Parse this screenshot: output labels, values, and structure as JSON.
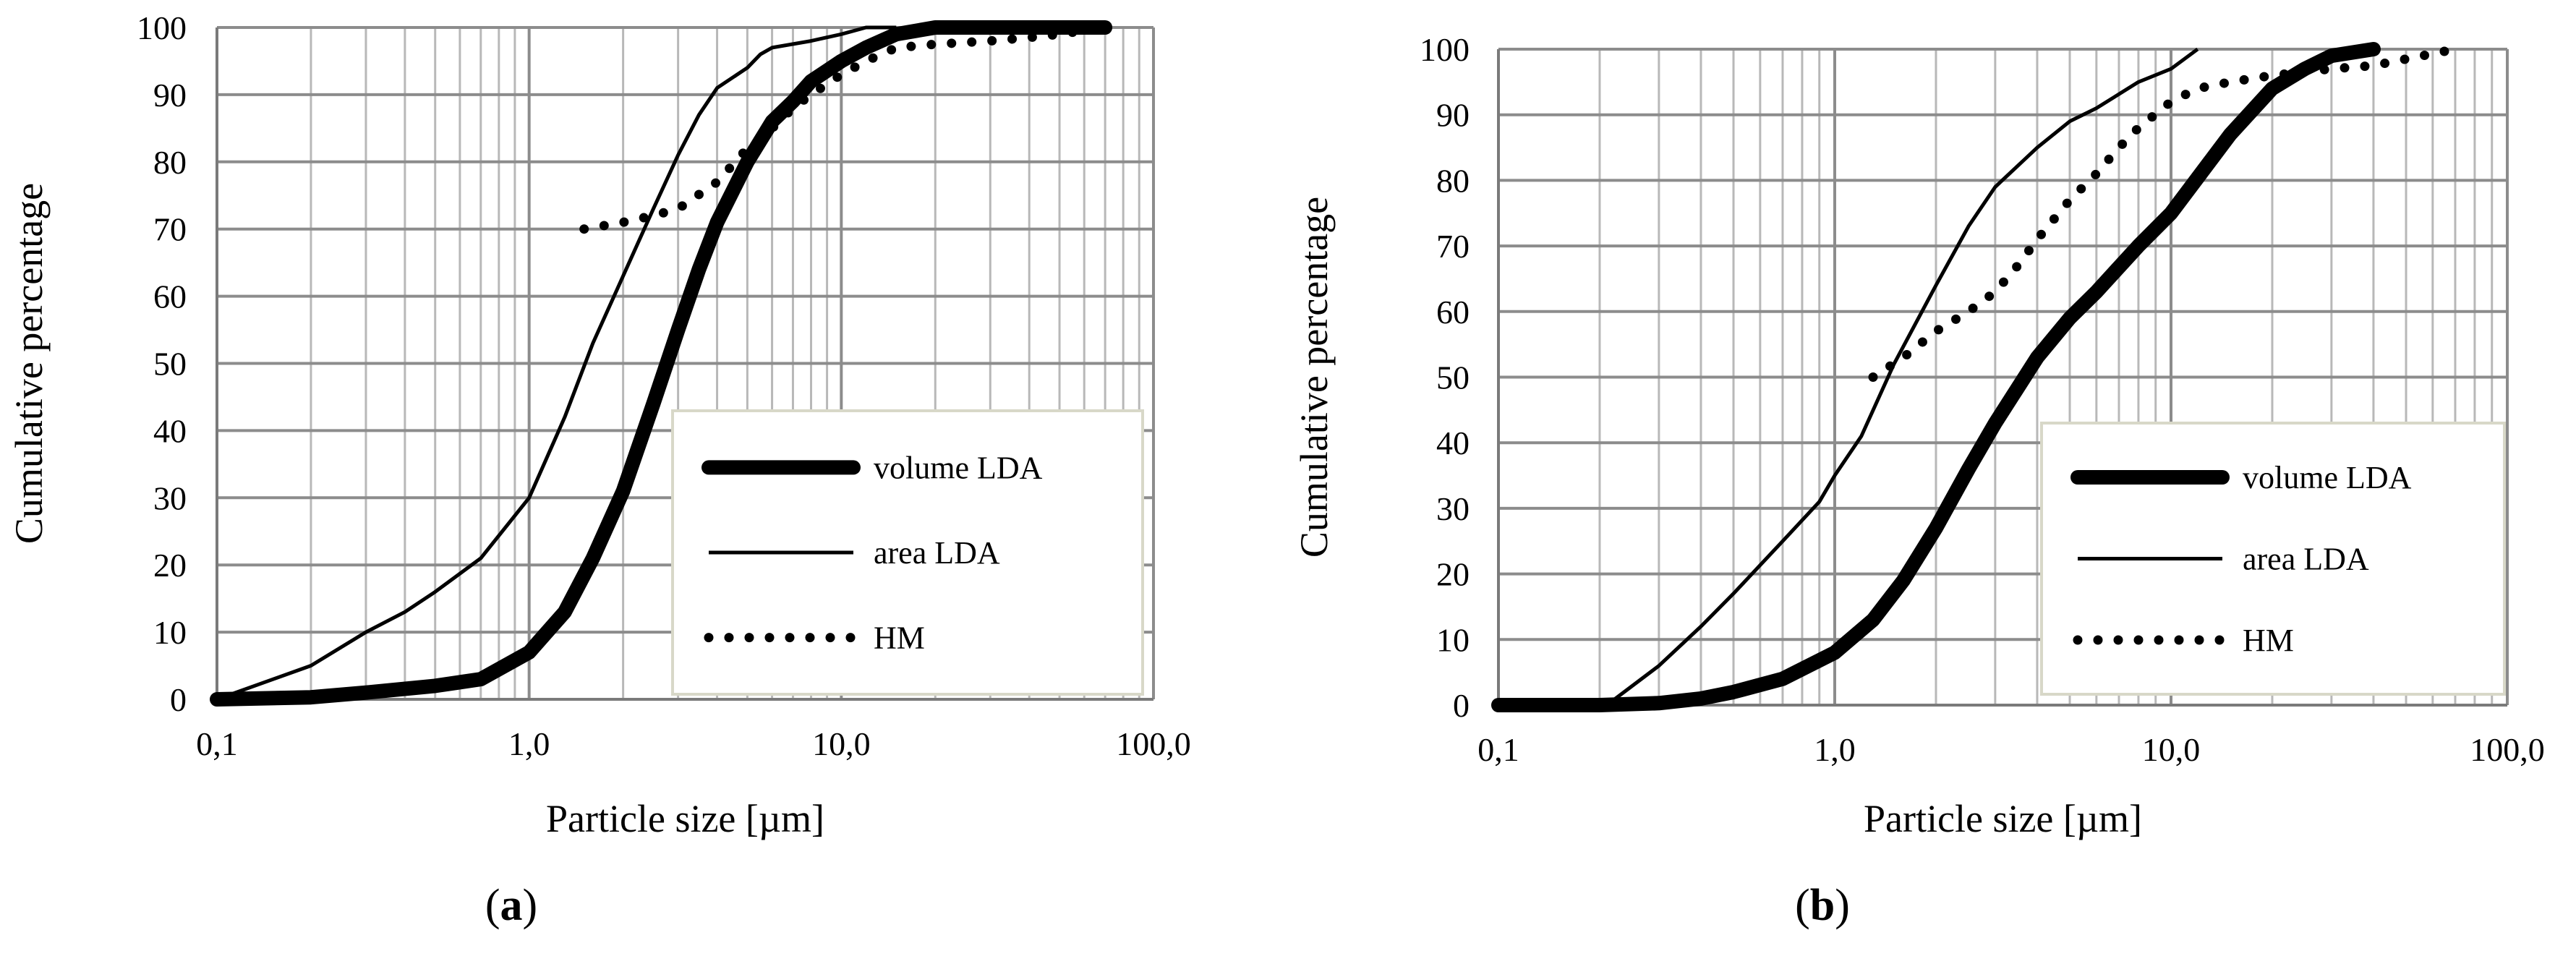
{
  "figure": {
    "caption_a": {
      "open": "(",
      "letter": "a",
      "close": ")"
    },
    "caption_b": {
      "open": "(",
      "letter": "b",
      "close": ")"
    }
  },
  "chart_data": [
    {
      "id": "a",
      "type": "line",
      "xscale": "log",
      "xlim": [
        0.1,
        100
      ],
      "ylim": [
        0,
        100
      ],
      "xlabel": "Particle size   [µm]",
      "ylabel": "Cumulative percentage",
      "x_tick_labels": [
        "0,1",
        "1,0",
        "10,0",
        "100,0"
      ],
      "y_ticks": [
        0,
        10,
        20,
        30,
        40,
        50,
        60,
        70,
        80,
        90,
        100
      ],
      "grid": true,
      "legend_position": "bottom-right",
      "series": [
        {
          "name": "volume LDA",
          "style": "thick",
          "x": [
            0.1,
            0.2,
            0.3,
            0.5,
            0.7,
            1.0,
            1.3,
            1.6,
            2.0,
            2.5,
            3.0,
            3.5,
            4.0,
            5.0,
            6.0,
            7.0,
            8.0,
            10,
            12,
            15,
            20,
            30,
            50,
            70
          ],
          "y": [
            0,
            0.3,
            1,
            2,
            3,
            7,
            13,
            21,
            31,
            44,
            55,
            64,
            71,
            80,
            86,
            89,
            92,
            95,
            97,
            99,
            100,
            100,
            100,
            100
          ]
        },
        {
          "name": "area LDA",
          "style": "thin",
          "x": [
            0.1,
            0.2,
            0.3,
            0.4,
            0.5,
            0.7,
            1.0,
            1.3,
            1.6,
            2.0,
            2.5,
            3.0,
            3.5,
            4.0,
            5.0,
            5.5,
            6.0,
            8.0,
            10,
            12,
            15
          ],
          "y": [
            0,
            5,
            10,
            13,
            16,
            21,
            30,
            42,
            53,
            63,
            73,
            81,
            87,
            91,
            94,
            96,
            97,
            98,
            99,
            100,
            100
          ]
        },
        {
          "name": "HM",
          "style": "dotted",
          "x": [
            1.5,
            2.0,
            2.5,
            3.0,
            4.0,
            5.0,
            6.0,
            7.0,
            8.0,
            10,
            12,
            15,
            20,
            30,
            40,
            50,
            70
          ],
          "y": [
            70,
            71,
            72,
            73,
            77,
            82,
            85,
            88,
            90,
            93,
            95,
            97,
            97.5,
            98,
            98.5,
            99,
            100
          ]
        }
      ]
    },
    {
      "id": "b",
      "type": "line",
      "xscale": "log",
      "xlim": [
        0.1,
        100
      ],
      "ylim": [
        0,
        100
      ],
      "xlabel": "Particle size   [µm]",
      "ylabel": "Cumulative percentage",
      "x_tick_labels": [
        "0,1",
        "1,0",
        "10,0",
        "100,0"
      ],
      "y_ticks": [
        0,
        10,
        20,
        30,
        40,
        50,
        60,
        70,
        80,
        90,
        100
      ],
      "grid": true,
      "legend_position": "bottom-right",
      "series": [
        {
          "name": "volume LDA",
          "style": "thick",
          "x": [
            0.1,
            0.2,
            0.3,
            0.4,
            0.5,
            0.7,
            1.0,
            1.3,
            1.6,
            2.0,
            2.5,
            3.0,
            4.0,
            5.0,
            6.0,
            8.0,
            10,
            15,
            20,
            25,
            30,
            40
          ],
          "y": [
            0,
            0,
            0.3,
            1,
            2,
            4,
            8,
            13,
            19,
            27,
            36,
            43,
            53,
            59,
            63,
            70,
            75,
            87,
            94,
            97,
            99,
            100
          ]
        },
        {
          "name": "area LDA",
          "style": "thin",
          "x": [
            0.21,
            0.3,
            0.4,
            0.5,
            0.7,
            0.9,
            1.0,
            1.2,
            1.5,
            2.0,
            2.5,
            3.0,
            4.0,
            5.0,
            6.0,
            8.0,
            10,
            12
          ],
          "y": [
            0,
            6,
            12,
            17,
            25,
            31,
            35,
            41,
            52,
            64,
            73,
            79,
            85,
            89,
            91,
            95,
            97,
            100
          ]
        },
        {
          "name": "HM",
          "style": "dotted",
          "x": [
            1.3,
            1.6,
            2.0,
            2.5,
            3.0,
            3.5,
            4.0,
            5.0,
            6.0,
            7.0,
            8.0,
            10,
            12,
            15,
            20,
            30,
            40,
            50,
            70
          ],
          "y": [
            50,
            53,
            57,
            60,
            63,
            67,
            71,
            77,
            81,
            85,
            88,
            92,
            94,
            95,
            96,
            97,
            97.5,
            98.5,
            100
          ]
        }
      ]
    }
  ]
}
